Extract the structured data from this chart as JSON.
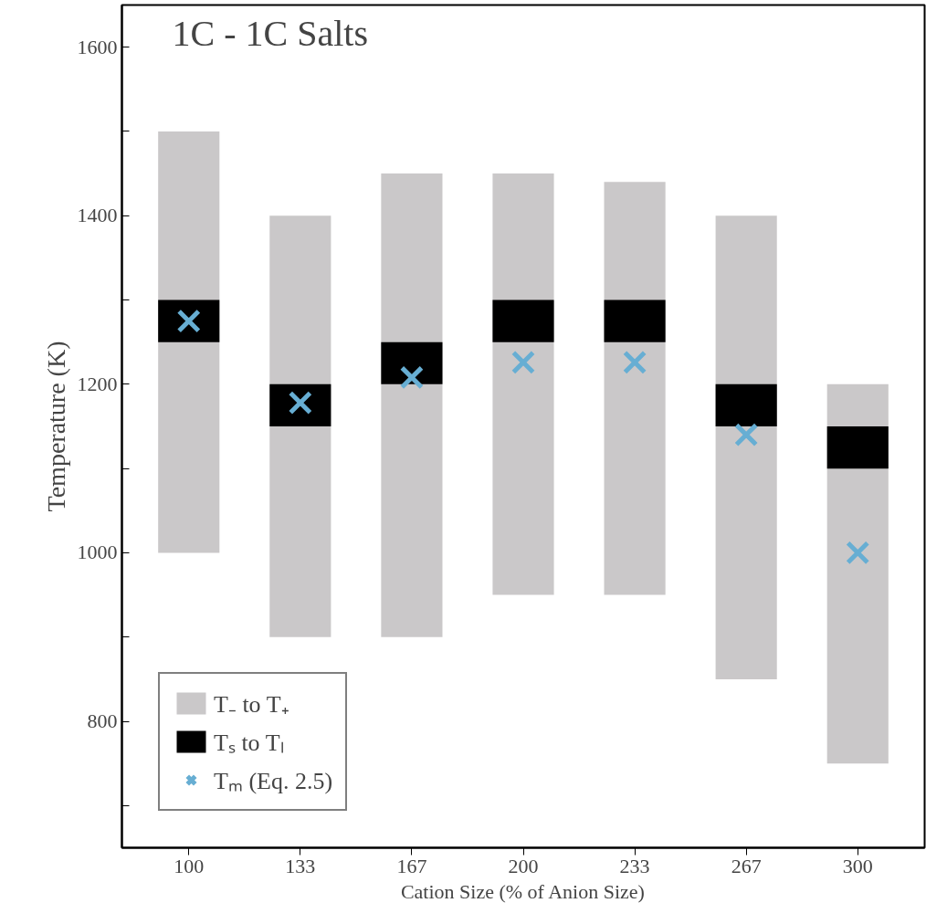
{
  "chart_data": {
    "type": "bar",
    "title": "1C - 1C Salts",
    "xlabel": "Cation Size (% of Anion Size)",
    "ylabel": "Temperature (K)",
    "categories": [
      "100",
      "133",
      "167",
      "200",
      "233",
      "267",
      "300"
    ],
    "series": [
      {
        "name": "T₋ to T₊",
        "color": "#cac8c9",
        "base": [
          1000,
          900,
          900,
          950,
          950,
          850,
          750
        ],
        "values": [
          500,
          500,
          550,
          500,
          490,
          550,
          450
        ]
      },
      {
        "name": "Tₛ to Tₗ",
        "color": "#000000",
        "base": [
          1250,
          1150,
          1200,
          1250,
          1250,
          1150,
          1100
        ],
        "values": [
          50,
          50,
          50,
          50,
          50,
          50,
          50
        ]
      },
      {
        "name": "Tₘ (Eq. 2.5)",
        "type": "scatter",
        "marker": "cross",
        "color": "#67aed3",
        "values": [
          1275,
          1178,
          1208,
          1226,
          1226,
          1140,
          1000
        ]
      }
    ],
    "ylim": [
      650,
      1650
    ],
    "yticks": [
      {
        "value": 700,
        "label": null
      },
      800,
      {
        "value": 900,
        "label": null
      },
      1000,
      {
        "value": 1100,
        "label": null
      },
      1200,
      {
        "value": 1300,
        "label": null
      },
      1400,
      {
        "value": 1500,
        "label": null
      },
      1600
    ],
    "grid": false,
    "legend": "bottom left"
  }
}
